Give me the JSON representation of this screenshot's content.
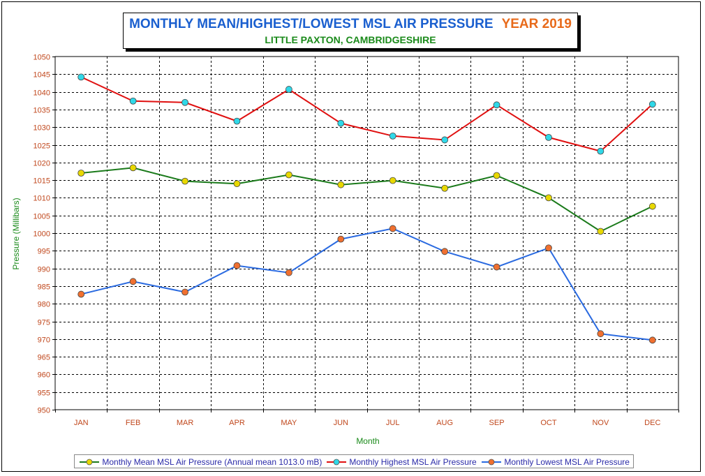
{
  "title": {
    "main": "MONTHLY MEAN/HIGHEST/LOWEST MSL AIR PRESSURE",
    "year": "YEAR 2019",
    "subtitle": "LITTLE PAXTON, CAMBRIDGESHIRE"
  },
  "colors": {
    "grid": "#000000",
    "tick_text": "#c0471c",
    "axis_title": "#1a8a1a",
    "mean_line": "#1a7a1a",
    "mean_marker": "#e8d800",
    "high_line": "#e01010",
    "high_marker": "#30d8e8",
    "low_line": "#2a6ae0",
    "low_marker": "#f07030",
    "legend_text": "#2a2aa8"
  },
  "chart_data": {
    "type": "line",
    "xlabel": "Month",
    "ylabel": "Pressure (Millibars)",
    "ylim": [
      950,
      1050
    ],
    "ytick_step": 5,
    "grid": true,
    "legend_position": "bottom",
    "categories": [
      "JAN",
      "FEB",
      "MAR",
      "APR",
      "MAY",
      "JUN",
      "JUL",
      "AUG",
      "SEP",
      "OCT",
      "NOV",
      "DEC"
    ],
    "series": [
      {
        "name": "Monthly Mean MSL Air Pressure (Annual mean 1013.0 mB)",
        "key": "mean",
        "values": [
          1017.0,
          1018.5,
          1014.7,
          1014.0,
          1016.5,
          1013.7,
          1014.9,
          1012.7,
          1016.3,
          1010.0,
          1000.5,
          1007.6
        ]
      },
      {
        "name": "Monthly Highest MSL Air Pressure",
        "key": "high",
        "values": [
          1044.2,
          1037.4,
          1037.0,
          1031.7,
          1040.7,
          1031.1,
          1027.5,
          1026.4,
          1036.3,
          1027.1,
          1023.2,
          1036.5
        ]
      },
      {
        "name": "Monthly Lowest MSL Air Pressure",
        "key": "low",
        "values": [
          982.7,
          986.3,
          983.3,
          990.8,
          988.8,
          998.3,
          1001.3,
          994.8,
          990.4,
          995.8,
          971.5,
          969.7
        ]
      }
    ]
  }
}
